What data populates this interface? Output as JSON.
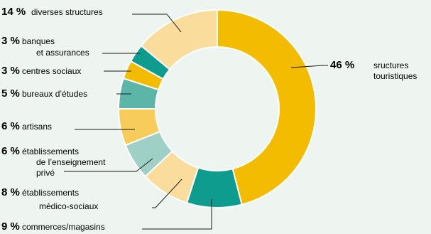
{
  "chart_data": {
    "type": "pie",
    "donut": true,
    "title": "",
    "slices": [
      {
        "name": "sructures touristiques",
        "pct_label": "46 %",
        "value": 46,
        "color": "#f3bc00"
      },
      {
        "name": "commerces/magasins",
        "pct_label": "9 %",
        "value": 9,
        "color": "#0e9c8e"
      },
      {
        "name": "établissements médico-sociaux",
        "pct_label": "8 %",
        "value": 8,
        "color": "#fadd9c"
      },
      {
        "name": "établissements de l’enseignement privé",
        "pct_label": "6 %",
        "value": 6,
        "color": "#9fd0c6"
      },
      {
        "name": "artisans",
        "pct_label": "6 %",
        "value": 6,
        "color": "#f7cc5a"
      },
      {
        "name": "bureaux d’études",
        "pct_label": "5 %",
        "value": 5,
        "color": "#5cb6a8"
      },
      {
        "name": "centres sociaux",
        "pct_label": "3 %",
        "value": 3,
        "color": "#f3bc00"
      },
      {
        "name": "banques et assurances",
        "pct_label": "3 %",
        "value": 3,
        "color": "#0e9c8e"
      },
      {
        "name": "diverses structures",
        "pct_label": "14 %",
        "value": 14,
        "color": "#fadd9c"
      }
    ]
  },
  "labels": {
    "touristiques": {
      "pct": "46 %",
      "lines": [
        "sructures",
        "touristiques"
      ]
    },
    "commerces": {
      "pct": "9 %",
      "lines": [
        "commerces/magasins"
      ]
    },
    "medico": {
      "pct": "8 %",
      "lines": [
        "établissements",
        "médico-sociaux"
      ]
    },
    "enseignement": {
      "pct": "6 %",
      "lines": [
        "établissements",
        "de l’enseignement",
        "privé"
      ]
    },
    "artisans": {
      "pct": "6 %",
      "lines": [
        "artisans"
      ]
    },
    "bureaux": {
      "pct": "5 %",
      "lines": [
        "bureaux d’études"
      ]
    },
    "centres": {
      "pct": "3 %",
      "lines": [
        "centres sociaux"
      ]
    },
    "banques": {
      "pct": "3 %",
      "lines": [
        "banques",
        "et assurances"
      ]
    },
    "diverses": {
      "pct": "14 %",
      "lines": [
        "diverses structures"
      ]
    }
  }
}
